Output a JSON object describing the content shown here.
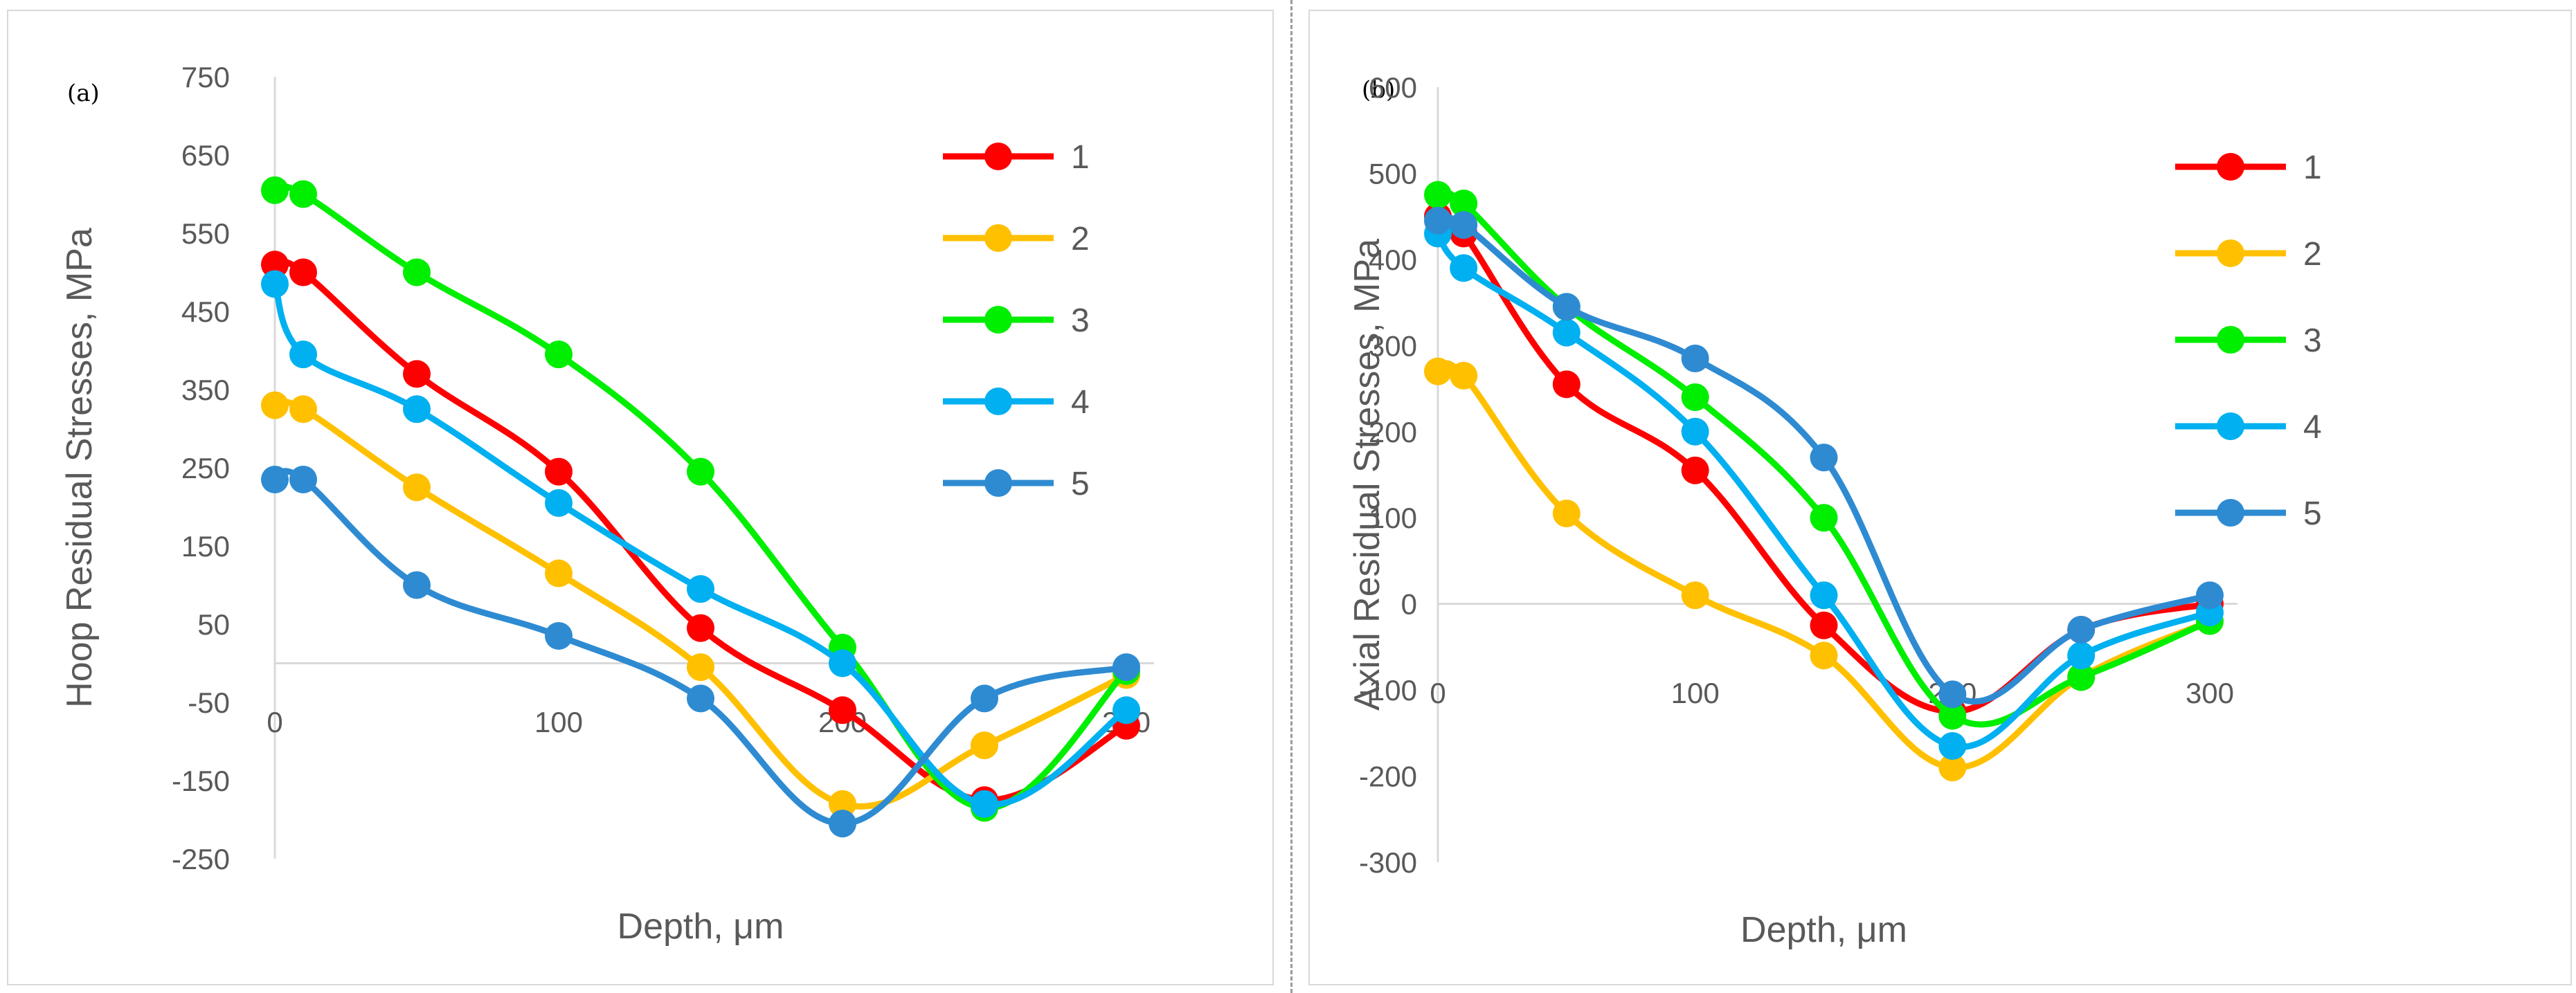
{
  "chart_data": [
    {
      "panel_label": "(a)",
      "type": "line",
      "smooth": true,
      "x": [
        0,
        10,
        50,
        100,
        150,
        200,
        250,
        300
      ],
      "series": [
        {
          "name": "1",
          "color": "#ff0000",
          "values": [
            510,
            500,
            370,
            245,
            45,
            -60,
            -175,
            -80
          ]
        },
        {
          "name": "2",
          "color": "#ffc000",
          "values": [
            330,
            325,
            225,
            115,
            -5,
            -180,
            -105,
            -15
          ]
        },
        {
          "name": "3",
          "color": "#00ee00",
          "values": [
            605,
            600,
            500,
            395,
            245,
            20,
            -185,
            -10
          ]
        },
        {
          "name": "4",
          "color": "#00b0f0",
          "values": [
            485,
            395,
            325,
            205,
            95,
            0,
            -180,
            -60
          ]
        },
        {
          "name": "5",
          "color": "#2e8bd2",
          "values": [
            235,
            235,
            100,
            35,
            -45,
            -205,
            -45,
            -5
          ]
        }
      ],
      "xlabel": "Depth, μm",
      "ylabel": "Hoop Residual Stresses, MPa",
      "xlim": [
        0,
        300
      ],
      "ylim": [
        -250,
        750
      ],
      "yticks": [
        -250,
        -150,
        -50,
        50,
        150,
        250,
        350,
        450,
        550,
        650,
        750
      ],
      "xticks": [
        0,
        100,
        200,
        300
      ],
      "grid": false,
      "legend": "right"
    },
    {
      "panel_label": "(b)",
      "type": "line",
      "smooth": true,
      "x": [
        0,
        10,
        50,
        100,
        150,
        200,
        250,
        300
      ],
      "series": [
        {
          "name": "1",
          "color": "#ff0000",
          "values": [
            450,
            430,
            255,
            155,
            -25,
            -125,
            -30,
            0
          ]
        },
        {
          "name": "2",
          "color": "#ffc000",
          "values": [
            270,
            265,
            105,
            10,
            -60,
            -190,
            -85,
            -20
          ]
        },
        {
          "name": "3",
          "color": "#00ee00",
          "values": [
            475,
            465,
            345,
            240,
            100,
            -130,
            -85,
            -20
          ]
        },
        {
          "name": "4",
          "color": "#00b0f0",
          "values": [
            430,
            390,
            315,
            200,
            10,
            -165,
            -60,
            -10
          ]
        },
        {
          "name": "5",
          "color": "#2e8bd2",
          "values": [
            445,
            440,
            345,
            285,
            170,
            -105,
            -30,
            10
          ]
        }
      ],
      "xlabel": "Depth, μm",
      "ylabel": "Axial Residual Stresses, MPa",
      "xlim": [
        0,
        300
      ],
      "ylim": [
        -300,
        600
      ],
      "yticks": [
        -300,
        -200,
        -100,
        0,
        100,
        200,
        300,
        400,
        500,
        600
      ],
      "xticks": [
        0,
        100,
        200,
        300
      ],
      "grid": false,
      "legend": "right"
    }
  ]
}
